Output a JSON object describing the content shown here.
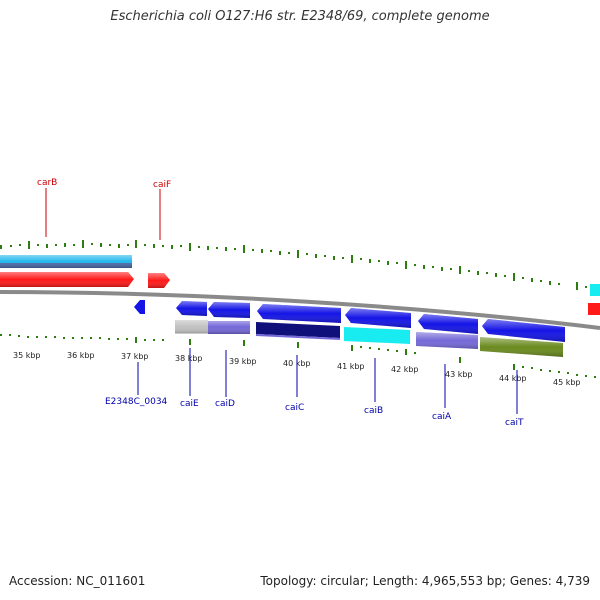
{
  "title": "Escherichia coli O127:H6 str. E2348/69, complete genome",
  "footer": {
    "accession": "Accession: NC_011601",
    "summary": "Topology: circular; Length: 4,965,553 bp; Genes: 4,739"
  },
  "colors": {
    "top_gene_label": "#cc0000",
    "bottom_gene_label": "#0000aa",
    "tick": "#2e7d10",
    "backbone": "#8a8a8a",
    "gene_red": "#ff1a1a",
    "gene_blue": "#1414e6",
    "gene_navy": "#10107a",
    "gene_cyan": "#19ecf0",
    "gene_slate": "#7468d8",
    "gene_olive": "#6a8a1e",
    "gene_grey": "#c0c0c0"
  },
  "kbp_labels": [
    "35 kbp",
    "36 kbp",
    "37 kbp",
    "38 kbp",
    "39 kbp",
    "40 kbp",
    "41 kbp",
    "42 kbp",
    "43 kbp",
    "44 kbp",
    "45 kbp"
  ],
  "top_gene_labels": [
    "carB",
    "caiF"
  ],
  "bottom_gene_labels": [
    "E2348C_0034",
    "caiE",
    "caiD",
    "caiC",
    "caiB",
    "caiA",
    "caiT"
  ]
}
